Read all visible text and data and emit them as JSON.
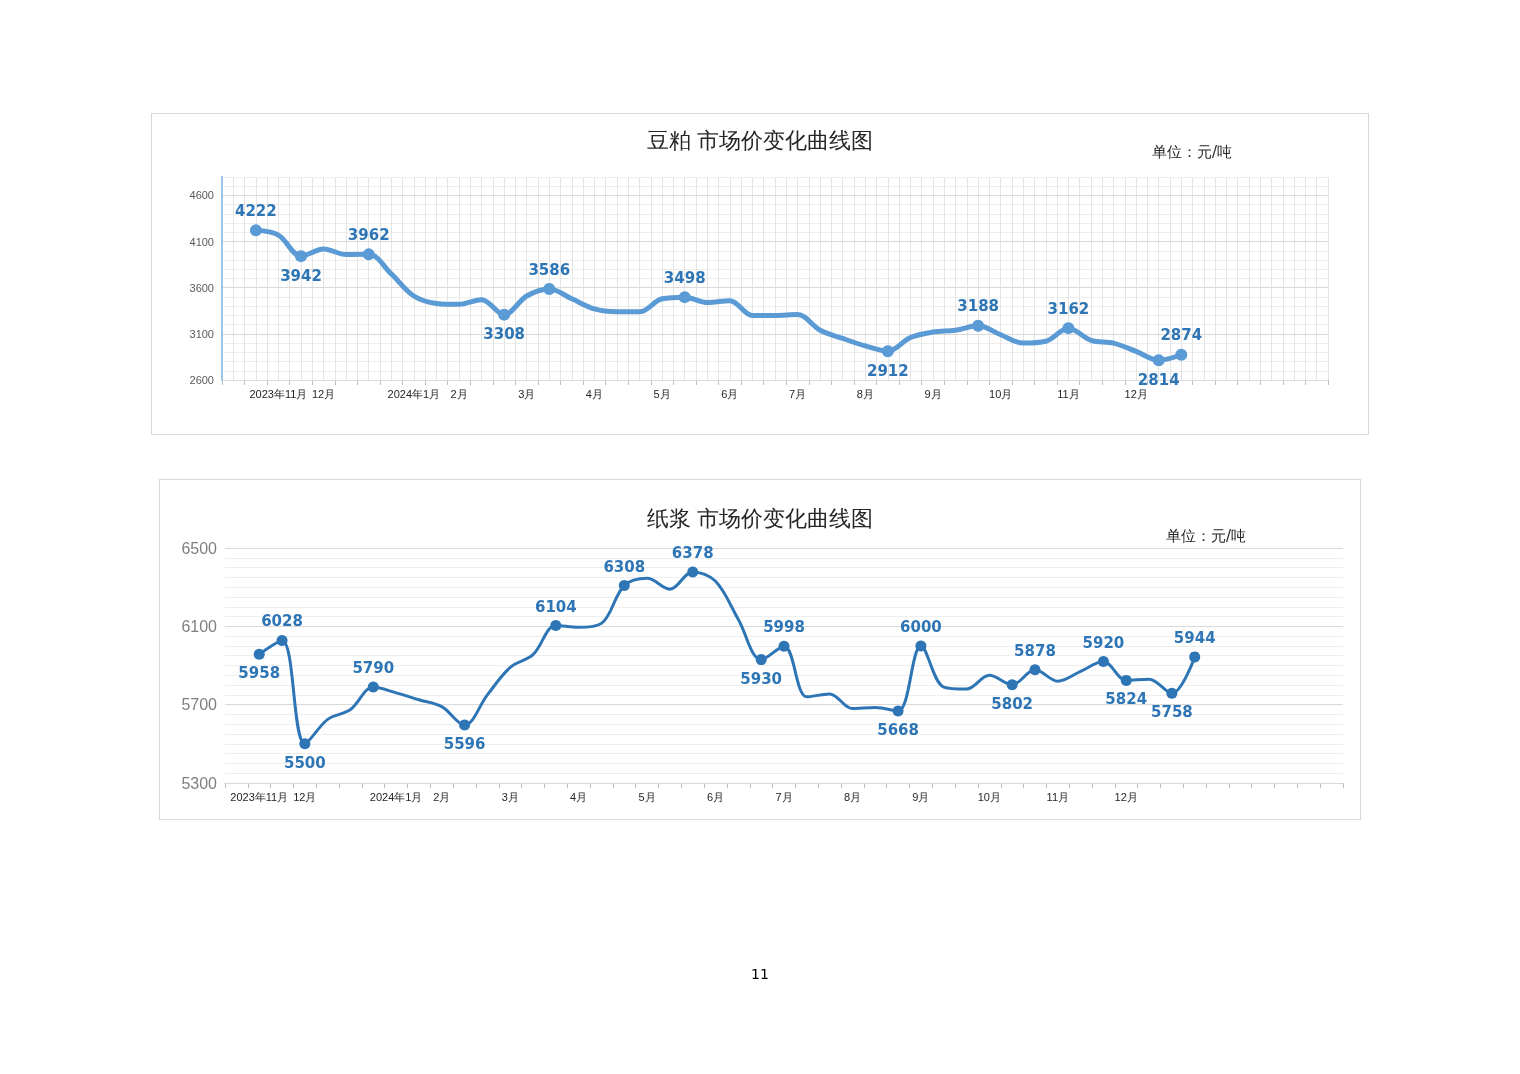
{
  "chart_data": [
    {
      "type": "line",
      "title": "豆粕 市场价变化曲线图",
      "subtitle": "单位：元/吨",
      "color": "#5b9bd5",
      "grid": true,
      "ylim": [
        2600,
        4800
      ],
      "yticks": [
        2600,
        3100,
        3600,
        4100,
        4600
      ],
      "categories": [
        null,
        null,
        "2023年11月",
        null,
        "12月",
        null,
        null,
        null,
        "2024年1月",
        null,
        "2月",
        null,
        null,
        "3月",
        null,
        null,
        "4月",
        null,
        null,
        "5月",
        null,
        null,
        "6月",
        null,
        null,
        "7月",
        null,
        null,
        "8月",
        null,
        null,
        "9月",
        null,
        null,
        "10月",
        null,
        null,
        "11月",
        null,
        null,
        "12月",
        null,
        null,
        null,
        null,
        null,
        null,
        null,
        null
      ],
      "values": [
        null,
        4222,
        4170,
        3942,
        4020,
        3960,
        3962,
        3750,
        3510,
        3430,
        3420,
        3470,
        3308,
        3510,
        3586,
        3480,
        3370,
        3340,
        3340,
        3480,
        3498,
        3440,
        3460,
        3300,
        3300,
        3310,
        3140,
        3050,
        2970,
        2912,
        3060,
        3120,
        3140,
        3188,
        3090,
        3000,
        3020,
        3162,
        3030,
        3000,
        2910,
        2814,
        2874,
        null,
        null,
        null,
        null,
        null,
        null
      ],
      "value_labels": [
        null,
        "4222",
        null,
        "3942",
        null,
        null,
        "3962",
        null,
        null,
        null,
        null,
        null,
        "3308",
        null,
        "3586",
        null,
        null,
        null,
        null,
        null,
        "3498",
        null,
        null,
        null,
        null,
        null,
        null,
        null,
        null,
        "2912",
        null,
        null,
        null,
        "3188",
        null,
        null,
        null,
        "3162",
        null,
        null,
        null,
        "2814",
        "2874",
        null,
        null,
        null,
        null,
        null,
        null
      ]
    },
    {
      "type": "line",
      "title": "纸浆 市场价变化曲线图",
      "subtitle": "单位：元/吨",
      "color": "#2e75b6",
      "grid": "y",
      "ylim": [
        5300,
        6500
      ],
      "yticks": [
        5300,
        5700,
        6100,
        6500
      ],
      "categories": [
        null,
        "2023年11月",
        null,
        "12月",
        null,
        null,
        null,
        "2024年1月",
        null,
        "2月",
        null,
        null,
        "3月",
        null,
        null,
        "4月",
        null,
        null,
        "5月",
        null,
        null,
        "6月",
        null,
        null,
        "7月",
        null,
        null,
        "8月",
        null,
        null,
        "9月",
        null,
        null,
        "10月",
        null,
        null,
        "11月",
        null,
        null,
        "12月",
        null,
        null,
        null,
        null,
        null,
        null,
        null,
        null,
        null
      ],
      "values": [
        null,
        5958,
        6028,
        5500,
        5625,
        5675,
        5790,
        5760,
        5725,
        5690,
        5596,
        5750,
        5890,
        5955,
        6104,
        6095,
        6115,
        6308,
        6345,
        6290,
        6378,
        6330,
        6135,
        5930,
        5998,
        5740,
        5755,
        5680,
        5685,
        5668,
        6000,
        5790,
        5780,
        5850,
        5802,
        5878,
        5820,
        5870,
        5920,
        5824,
        5830,
        5758,
        5944,
        null,
        null,
        null,
        null,
        null,
        null
      ],
      "value_labels": [
        null,
        "5958",
        "6028",
        "5500",
        null,
        null,
        "5790",
        null,
        null,
        null,
        "5596",
        null,
        null,
        null,
        "6104",
        null,
        null,
        "6308",
        null,
        null,
        "6378",
        null,
        null,
        "5930",
        "5998",
        null,
        null,
        null,
        null,
        "5668",
        "6000",
        null,
        null,
        null,
        "5802",
        "5878",
        null,
        null,
        "5920",
        "5824",
        null,
        "5758",
        "5944",
        null,
        null,
        null,
        null,
        null,
        null
      ],
      "annotations": [
        "11"
      ]
    }
  ]
}
